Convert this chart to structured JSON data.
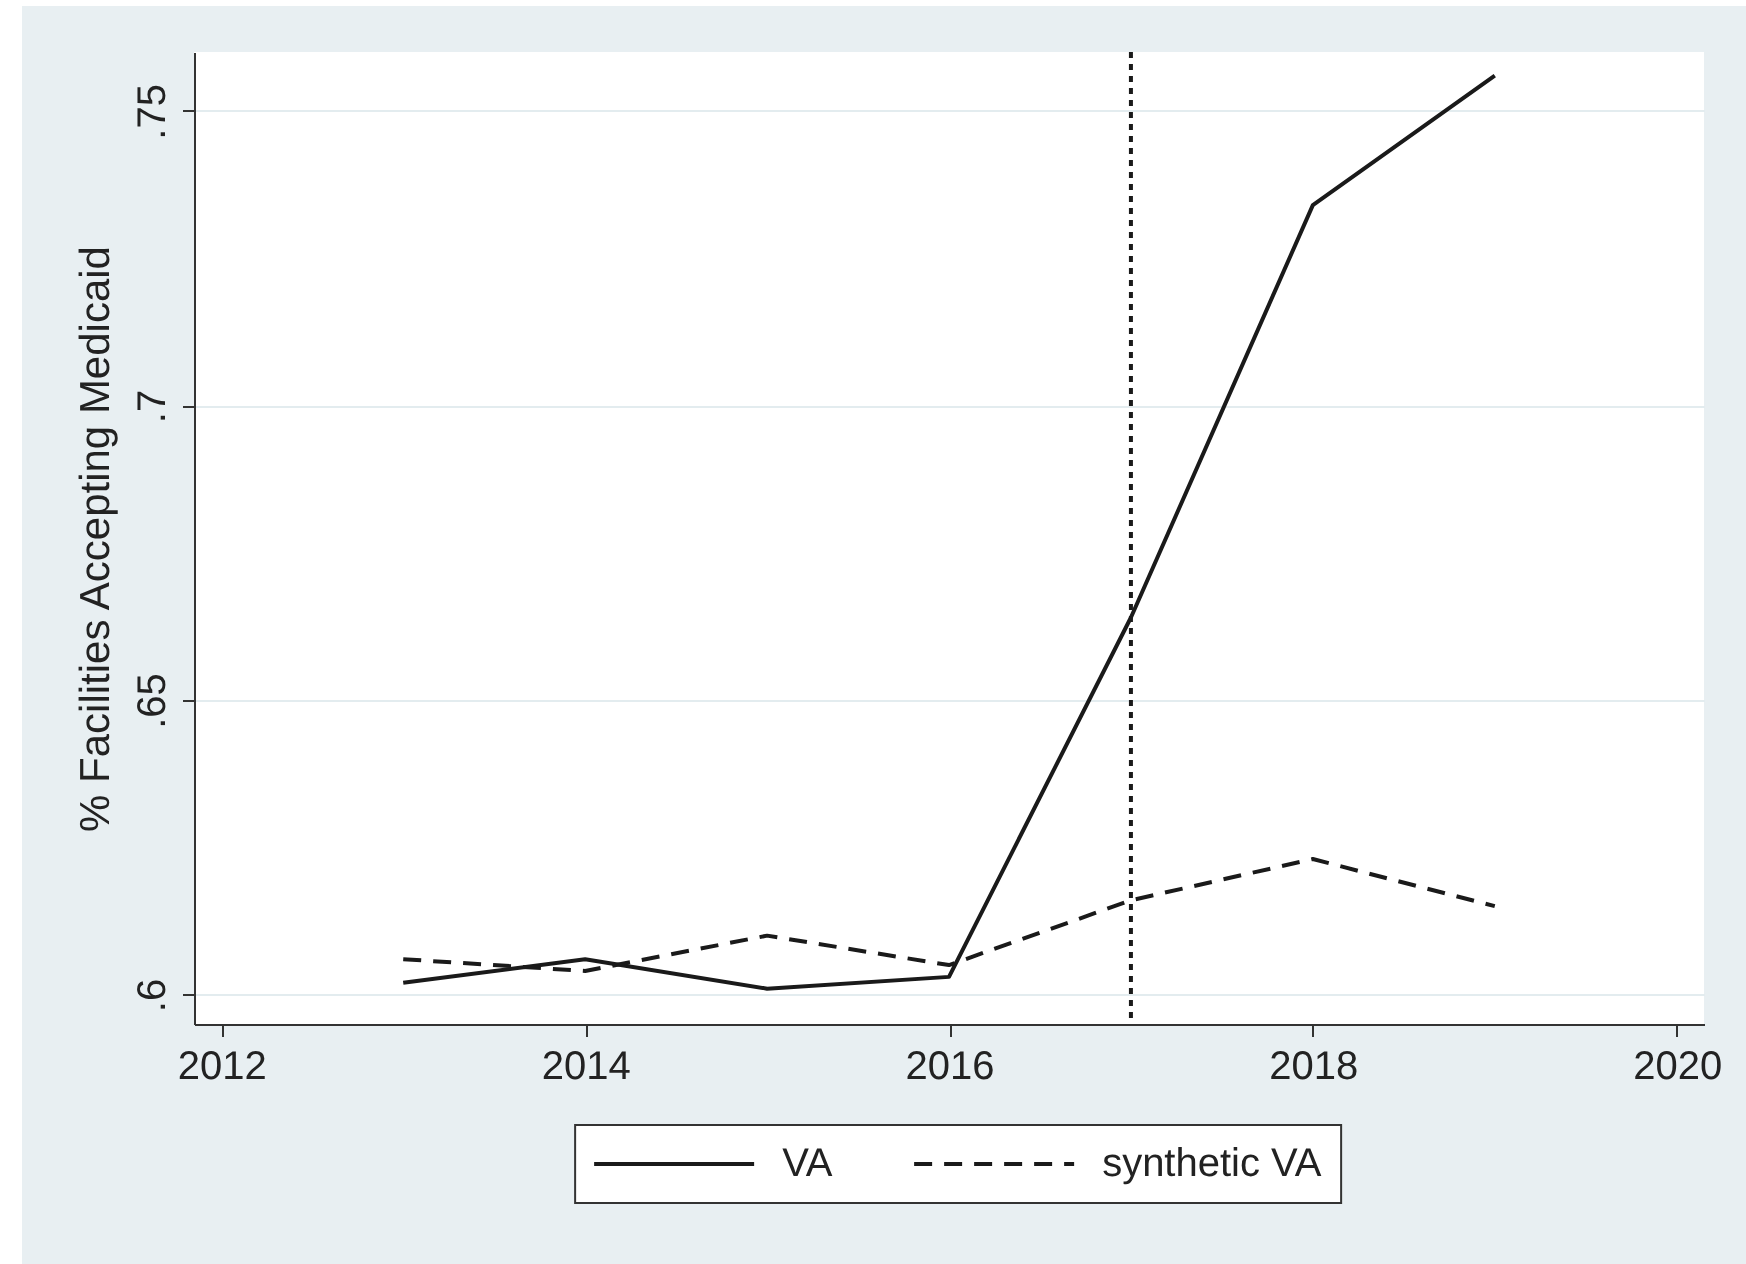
{
  "chart_data": {
    "type": "line",
    "ylabel": "% Facilities Accepting Medicaid",
    "x": [
      2013,
      2014,
      2015,
      2016,
      2017,
      2018,
      2019
    ],
    "series": [
      {
        "name": "VA",
        "color": "#1a1a1a",
        "line_style": "solid",
        "values": [
          0.602,
          0.606,
          0.601,
          0.603,
          0.664,
          0.734,
          0.756
        ]
      },
      {
        "name": "synthetic VA",
        "color": "#1a1a1a",
        "line_style": "dashed",
        "values": [
          0.606,
          0.604,
          0.61,
          0.605,
          0.616,
          0.623,
          0.615
        ]
      }
    ],
    "xlim": [
      2011.85,
      2020.15
    ],
    "xticks": [
      2012,
      2014,
      2016,
      2018,
      2020
    ],
    "ylim": [
      0.595,
      0.76
    ],
    "yticks": [
      {
        "value": 0.6,
        "label": ".6"
      },
      {
        "value": 0.65,
        "label": ".65"
      },
      {
        "value": 0.7,
        "label": ".7"
      },
      {
        "value": 0.75,
        "label": ".75"
      }
    ],
    "grid": "y",
    "legend": "bottom",
    "ref_lines": [
      {
        "axis": "x",
        "value": 2017,
        "color": "#1a1a1a",
        "line_style": "dotted"
      }
    ]
  }
}
